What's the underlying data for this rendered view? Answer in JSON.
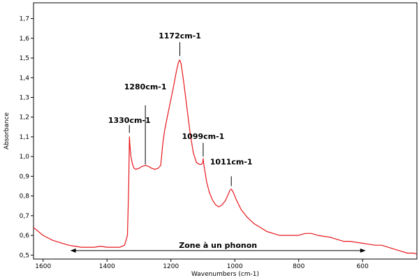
{
  "chart_data": {
    "type": "line",
    "title": "",
    "xlabel": "Wavenumbers (cm-1)",
    "ylabel": "Absorbance",
    "xlim": [
      1630,
      430
    ],
    "ylim": [
      0.48,
      1.78
    ],
    "x_reversed": true,
    "grid": false,
    "legend": "none",
    "x_ticks": [
      {
        "value": 1600,
        "label": "1600"
      },
      {
        "value": 1400,
        "label": "1400"
      },
      {
        "value": 1200,
        "label": "1200"
      },
      {
        "value": 1000,
        "label": "1000"
      },
      {
        "value": 800,
        "label": "800"
      },
      {
        "value": 600,
        "label": "600"
      }
    ],
    "y_ticks": [
      {
        "value": 0.5,
        "label": "0,5"
      },
      {
        "value": 0.6,
        "label": "0,6"
      },
      {
        "value": 0.7,
        "label": "0,7"
      },
      {
        "value": 0.8,
        "label": "0,8"
      },
      {
        "value": 0.9,
        "label": "0,9"
      },
      {
        "value": 1.0,
        "label": "1,0"
      },
      {
        "value": 1.1,
        "label": "1,1"
      },
      {
        "value": 1.2,
        "label": "1,2"
      },
      {
        "value": 1.3,
        "label": "1,3"
      },
      {
        "value": 1.4,
        "label": "1,4"
      },
      {
        "value": 1.5,
        "label": "1,5"
      },
      {
        "value": 1.6,
        "label": "1,6"
      },
      {
        "value": 1.7,
        "label": "1,7"
      }
    ],
    "series": [
      {
        "color": "#e8161b",
        "x": [
          1630,
          1600,
          1570,
          1540,
          1520,
          1500,
          1480,
          1460,
          1440,
          1420,
          1400,
          1380,
          1360,
          1345,
          1336,
          1332,
          1330,
          1328,
          1325,
          1320,
          1315,
          1310,
          1300,
          1290,
          1280,
          1270,
          1260,
          1250,
          1240,
          1232,
          1228,
          1225,
          1220,
          1210,
          1200,
          1190,
          1182,
          1176,
          1172,
          1168,
          1160,
          1150,
          1140,
          1130,
          1120,
          1110,
          1105,
          1100,
          1099,
          1097,
          1093,
          1088,
          1080,
          1070,
          1060,
          1050,
          1040,
          1030,
          1020,
          1015,
          1011,
          1005,
          995,
          980,
          960,
          940,
          920,
          900,
          880,
          860,
          840,
          820,
          800,
          780,
          760,
          740,
          720,
          700,
          680,
          660,
          640,
          620,
          600,
          580,
          560,
          540,
          520,
          500,
          480,
          460,
          440,
          430
        ],
        "y": [
          0.64,
          0.6,
          0.575,
          0.56,
          0.55,
          0.545,
          0.54,
          0.54,
          0.54,
          0.545,
          0.54,
          0.54,
          0.54,
          0.55,
          0.6,
          0.85,
          1.1,
          1.05,
          1.0,
          0.96,
          0.94,
          0.935,
          0.94,
          0.95,
          0.955,
          0.95,
          0.94,
          0.935,
          0.94,
          0.955,
          1.02,
          1.07,
          1.13,
          1.21,
          1.29,
          1.37,
          1.44,
          1.48,
          1.49,
          1.47,
          1.38,
          1.25,
          1.12,
          1.02,
          0.97,
          0.96,
          0.96,
          0.97,
          0.99,
          0.96,
          0.92,
          0.87,
          0.82,
          0.78,
          0.755,
          0.745,
          0.755,
          0.775,
          0.81,
          0.83,
          0.835,
          0.82,
          0.78,
          0.73,
          0.69,
          0.66,
          0.64,
          0.62,
          0.61,
          0.6,
          0.6,
          0.6,
          0.6,
          0.61,
          0.61,
          0.6,
          0.595,
          0.59,
          0.58,
          0.57,
          0.57,
          0.565,
          0.56,
          0.555,
          0.55,
          0.55,
          0.54,
          0.53,
          0.52,
          0.51,
          0.51,
          0.505
        ]
      }
    ],
    "annotations": [
      {
        "text": "1330cm-1",
        "x": 1330,
        "line_y": [
          1.12,
          1.16
        ],
        "text_y": 1.17
      },
      {
        "text": "1280cm-1",
        "x": 1280,
        "line_y": [
          0.96,
          1.26
        ],
        "text_y": 1.34
      },
      {
        "text": "1172cm-1",
        "x": 1172,
        "line_y": [
          1.51,
          1.58
        ],
        "text_y": 1.6
      },
      {
        "text": "1099cm-1",
        "x": 1099,
        "line_y": [
          1.0,
          1.07
        ],
        "text_y": 1.09
      },
      {
        "text": "1011cm-1",
        "x": 1011,
        "line_y": [
          0.85,
          0.9
        ],
        "text_y": 0.96
      }
    ],
    "zone": {
      "text": "Zone à un phonon",
      "x_start": 1515,
      "x_end": 590,
      "y": 0.523
    }
  }
}
